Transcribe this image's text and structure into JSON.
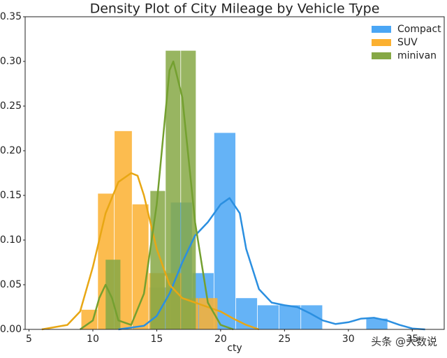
{
  "chart_data": {
    "type": "density",
    "title": "Density Plot of City Mileage by Vehicle Type",
    "x_label": "cty",
    "xlim": [
      4.7,
      37.5
    ],
    "xticks": [
      5,
      10,
      15,
      20,
      25,
      30,
      35
    ],
    "ylim": [
      0,
      0.35
    ],
    "yticks": [
      {
        "value": 0,
        "label": "0.00"
      },
      {
        "value": 0.05,
        "label": "0.05"
      },
      {
        "value": 0.1,
        "label": "0.10"
      },
      {
        "value": 0.15,
        "label": "0.15"
      },
      {
        "value": 0.2,
        "label": "0.20"
      },
      {
        "value": 0.25,
        "label": "0.25"
      },
      {
        "value": 0.3,
        "label": "0.30"
      },
      {
        "value": 0.35,
        "label": "0.35"
      }
    ],
    "grid": false,
    "legend": "upper right",
    "watermark": "头条 @大数说",
    "series": [
      {
        "name": "Compact",
        "color": "#4aa6f5",
        "line_color": "#2b8fe0",
        "bins": [
          14.4,
          16.1,
          17.8,
          19.5,
          21.2,
          22.9,
          24.6,
          26.3,
          28.0,
          29.7,
          31.4,
          33.1
        ],
        "values": [
          0.047,
          0.142,
          0.063,
          0.22,
          0.035,
          0.027,
          0.027,
          0.027,
          0,
          0,
          0.012
        ],
        "kde": {
          "x": [
            12,
            14,
            15,
            16,
            17,
            18,
            19,
            20,
            20.7,
            21.5,
            22,
            23,
            24,
            25,
            26,
            27,
            28,
            29,
            30,
            31,
            32,
            33,
            34,
            35,
            36
          ],
          "values": [
            0,
            0.004,
            0.015,
            0.04,
            0.075,
            0.105,
            0.12,
            0.14,
            0.147,
            0.13,
            0.09,
            0.045,
            0.03,
            0.027,
            0.025,
            0.018,
            0.01,
            0.006,
            0.008,
            0.012,
            0.013,
            0.01,
            0.005,
            0.001,
            0
          ]
        }
      },
      {
        "name": "SUV",
        "color": "#fbb030",
        "line_color": "#e8a714",
        "bins": [
          9.1,
          10.4,
          11.7,
          13.1,
          14.4,
          15.7,
          17.0,
          18.3,
          19.8
        ],
        "values": [
          0.022,
          0.152,
          0.222,
          0.14,
          0.063,
          0.063,
          0.035,
          0.035
        ],
        "kde": {
          "x": [
            6,
            8,
            9,
            10,
            11,
            12,
            13,
            13.5,
            14,
            15,
            16,
            17,
            18,
            19,
            20,
            21,
            22,
            23
          ],
          "values": [
            0,
            0.005,
            0.02,
            0.07,
            0.13,
            0.165,
            0.175,
            0.172,
            0.15,
            0.09,
            0.05,
            0.035,
            0.03,
            0.025,
            0.02,
            0.012,
            0.005,
            0
          ]
        }
      },
      {
        "name": "minivan",
        "color": "#86a845",
        "line_color": "#74a030",
        "bins": [
          11,
          12.2,
          13.4,
          14.5,
          15.7,
          16.9,
          18.1
        ],
        "values": [
          0.078,
          0,
          0,
          0.155,
          0.312,
          0.312
        ],
        "kde": {
          "x": [
            9,
            10,
            10.5,
            11,
            11.5,
            12,
            13,
            14,
            15,
            16,
            16.3,
            17,
            18,
            19,
            20,
            21
          ],
          "values": [
            0,
            0.01,
            0.035,
            0.05,
            0.035,
            0.01,
            0.005,
            0.04,
            0.14,
            0.29,
            0.3,
            0.26,
            0.12,
            0.03,
            0.005,
            0
          ]
        }
      }
    ]
  }
}
